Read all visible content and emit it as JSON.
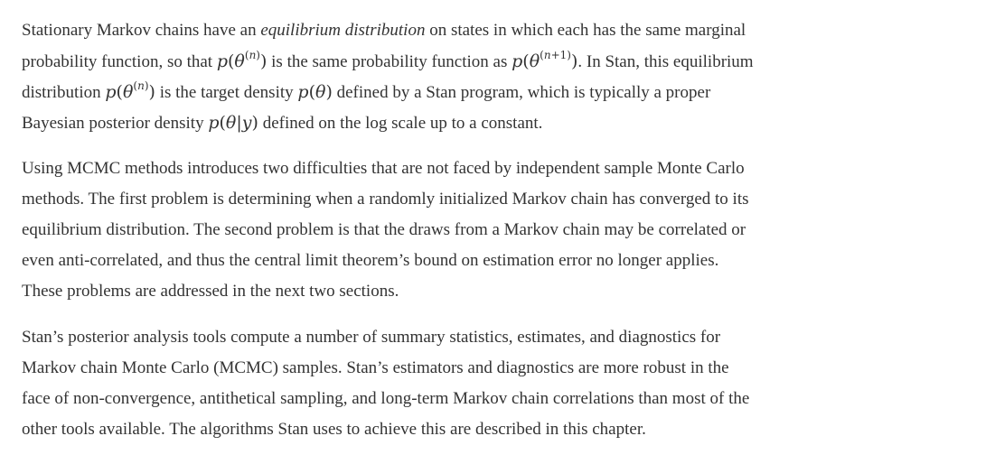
{
  "paragraphs": [
    {
      "lines": [
        {
          "a": "Stationary Markov chains have an ",
          "em": "equilibrium distribution",
          "b": " on states in which each has the same marginal"
        },
        {
          "a": "probability function, so that ",
          "m1": "p(θ(n))",
          "b": " is the same probability function as ",
          "m2": "p(θ(n+1))",
          "c": ". In Stan, this equilibrium"
        },
        {
          "a": "distribution ",
          "m1": "p(θ(n))",
          "b": " is the target density ",
          "m2": "p(θ)",
          "c": " defined by a Stan program, which is typically a proper"
        },
        {
          "a": "Bayesian posterior density ",
          "m1": "p(θ|y)",
          "b": " defined on the log scale up to a constant."
        }
      ]
    },
    {
      "lines": [
        "Using MCMC methods introduces two difficulties that are not faced by independent sample Monte Carlo",
        "methods. The first problem is determining when a randomly initialized Markov chain has converged to its",
        "equilibrium distribution. The second problem is that the draws from a Markov chain may be correlated or",
        "even anti-correlated, and thus the central limit theorem’s bound on estimation error no longer applies.",
        "These problems are addressed in the next two sections."
      ]
    },
    {
      "lines": [
        "Stan’s posterior analysis tools compute a number of summary statistics, estimates, and diagnostics for",
        "Markov chain Monte Carlo (MCMC) samples. Stan’s estimators and diagnostics are more robust in the",
        "face of non-convergence, antithetical sampling, and long-term Markov chain correlations than most of the",
        "other tools available. The algorithms Stan uses to achieve this are described in this chapter."
      ]
    }
  ],
  "colors": {
    "text": "#333333",
    "background": "#ffffff"
  }
}
